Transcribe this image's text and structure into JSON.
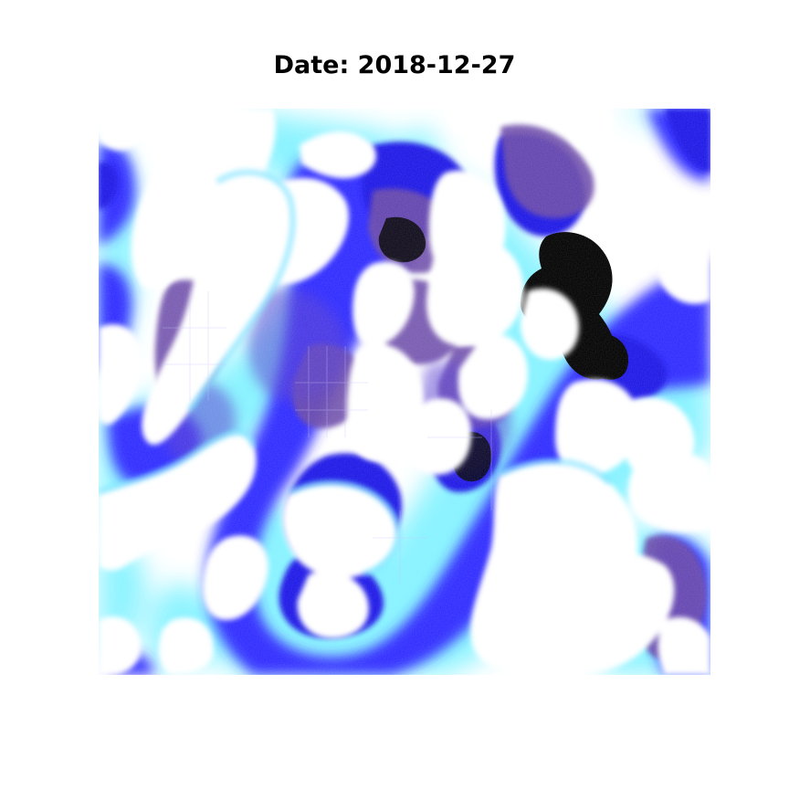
{
  "title": "Date: 2018-12-27",
  "imagery": {
    "kind": "satellite-false-color-scene",
    "palette": {
      "cloud": "#ffffff",
      "haze": "#7ff2ff",
      "cyan_fringe": "#4fd8ff",
      "deep_blue": "#1a14e6",
      "blue": "#2f2bff",
      "violet": "#5a3fd0",
      "urban_purple": "#6a4aa8",
      "water": "#000000"
    }
  }
}
